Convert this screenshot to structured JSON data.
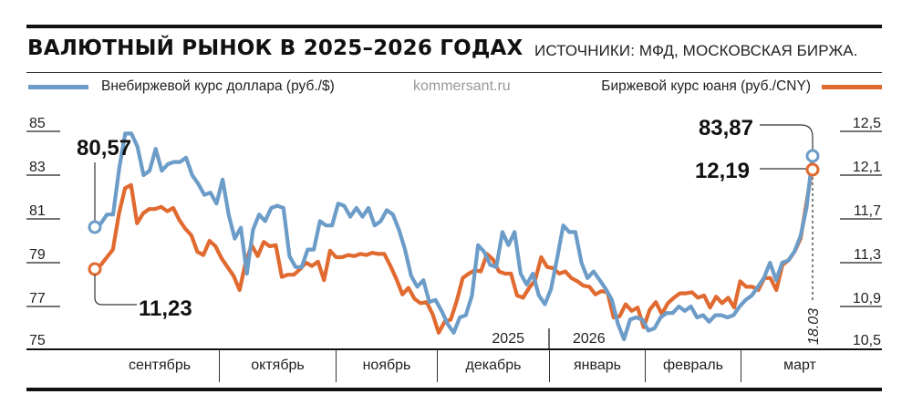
{
  "header": {
    "title": "ВАЛЮТНЫЙ РЫНОК В 2025–2026 ГОДАХ",
    "sources": "ИСТОЧНИКИ: МФД, МОСКОВСКАЯ БИРЖА."
  },
  "legend": {
    "usd_label": "Внебиржевой курс доллара (руб./$)",
    "cny_label": "Биржевой курс юаня (руб./CNY)",
    "watermark": "kommersant.ru"
  },
  "colors": {
    "usd": "#6c9cc8",
    "cny": "#e06a30",
    "text": "#111111"
  },
  "axes": {
    "left_ticks": [
      "85",
      "83",
      "81",
      "79",
      "77",
      "75"
    ],
    "right_ticks": [
      "12,5",
      "12,1",
      "11,7",
      "11,3",
      "10,9",
      "10,5"
    ],
    "year_labels": [
      "2025",
      "2026"
    ],
    "months": [
      "сентябрь",
      "октябрь",
      "ноябрь",
      "декабрь",
      "январь",
      "февраль",
      "март"
    ],
    "date_marker": "18.03"
  },
  "callouts": {
    "usd_start": "80,57",
    "cny_start": "11,23",
    "usd_end": "83,87",
    "cny_end": "12,19"
  },
  "chart_data": {
    "type": "line",
    "title": "ВАЛЮТНЫЙ РЫНОК В 2025–2026 ГОДАХ",
    "subtitle": "ИСТОЧНИКИ: МФД, МОСКОВСКАЯ БИРЖА.",
    "xlabel": "",
    "ylabel_left": "руб./$",
    "ylabel_right": "руб./CNY",
    "ylim_left": [
      75,
      85
    ],
    "ylim_right": [
      10.5,
      12.5
    ],
    "grid": true,
    "legend_position": "top",
    "x_categories": [
      "сентябрь",
      "октябрь",
      "ноябрь",
      "декабрь",
      "январь",
      "февраль",
      "март"
    ],
    "annotations": [
      "80,57",
      "11,23",
      "83,87",
      "12,19",
      "18.03",
      "2025",
      "2026"
    ],
    "series": [
      {
        "name": "Внебиржевой курс доллара (руб./$)",
        "axis": "left",
        "color": "#6c9cc8",
        "start_value": 80.57,
        "end_value": 83.87,
        "values": [
          80.57,
          80.8,
          81.2,
          81.2,
          83.3,
          84.9,
          84.9,
          84.3,
          83.0,
          83.2,
          84.2,
          83.2,
          83.5,
          83.6,
          83.6,
          83.8,
          83.0,
          82.6,
          82.1,
          82.2,
          81.7,
          82.8,
          81.2,
          80.1,
          80.6,
          78.5,
          80.5,
          81.2,
          80.9,
          81.5,
          81.6,
          81.5,
          79.3,
          78.8,
          78.8,
          79.6,
          79.6,
          80.9,
          80.7,
          80.7,
          81.7,
          81.6,
          81.1,
          81.5,
          81.1,
          81.5,
          80.7,
          80.9,
          81.4,
          81.2,
          80.5,
          79.6,
          78.4,
          77.9,
          78.2,
          77.2,
          77.3,
          76.8,
          76.2,
          75.8,
          76.5,
          76.6,
          77.5,
          79.8,
          79.5,
          78.9,
          78.8,
          80.4,
          79.8,
          80.4,
          78.5,
          78.0,
          78.5,
          77.5,
          77.1,
          77.8,
          79.2,
          80.7,
          80.4,
          80.4,
          79.0,
          78.3,
          78.6,
          78.2,
          77.8,
          77.3,
          76.2,
          75.5,
          76.4,
          76.5,
          76.4,
          75.9,
          76.0,
          76.5,
          76.7,
          76.7,
          77.0,
          76.8,
          77.0,
          76.5,
          76.6,
          76.3,
          76.6,
          76.6,
          76.5,
          76.6,
          77.0,
          77.3,
          77.5,
          77.9,
          78.3,
          79.0,
          78.2,
          79.0,
          79.1,
          79.5,
          80.2,
          81.5,
          83.87
        ]
      },
      {
        "name": "Биржевой курс юаня (руб./CNY)",
        "axis": "right",
        "color": "#e06a30",
        "start_value": 11.23,
        "end_value": 12.19,
        "values": [
          11.23,
          11.28,
          11.35,
          11.42,
          11.75,
          11.98,
          12.01,
          11.66,
          11.75,
          11.79,
          11.79,
          11.81,
          11.77,
          11.8,
          11.69,
          11.61,
          11.55,
          11.4,
          11.37,
          11.5,
          11.45,
          11.34,
          11.26,
          11.18,
          11.05,
          11.3,
          11.46,
          11.36,
          11.49,
          11.45,
          11.46,
          11.17,
          11.19,
          11.19,
          11.24,
          11.3,
          11.27,
          11.31,
          11.14,
          11.41,
          11.35,
          11.35,
          11.37,
          11.36,
          11.38,
          11.37,
          11.39,
          11.38,
          11.38,
          11.27,
          11.15,
          11.01,
          11.07,
          10.97,
          10.93,
          10.94,
          10.83,
          10.66,
          10.76,
          10.78,
          10.95,
          11.16,
          11.2,
          11.23,
          11.22,
          11.38,
          11.33,
          11.22,
          11.2,
          11.2,
          11.0,
          10.98,
          11.07,
          11.14,
          11.35,
          11.26,
          11.25,
          11.2,
          11.22,
          11.16,
          11.13,
          11.09,
          11.08,
          11.01,
          11.04,
          11.03,
          10.8,
          10.81,
          10.92,
          10.86,
          10.89,
          10.71,
          10.87,
          10.94,
          10.83,
          10.93,
          10.98,
          11.02,
          11.02,
          11.03,
          10.98,
          11.0,
          10.89,
          10.99,
          10.93,
          10.98,
          10.89,
          11.13,
          11.08,
          11.08,
          11.05,
          11.16,
          11.16,
          11.05,
          11.28,
          11.32,
          11.4,
          11.52,
          11.85,
          12.19
        ]
      }
    ]
  }
}
